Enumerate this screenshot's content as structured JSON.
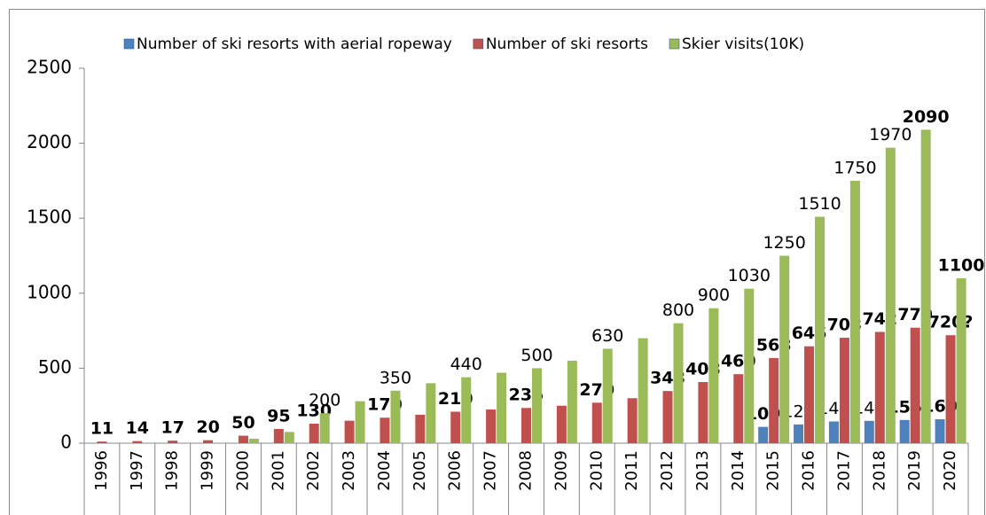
{
  "chart_data": {
    "type": "bar",
    "categories": [
      "1996",
      "1997",
      "1998",
      "1999",
      "2000",
      "2001",
      "2002",
      "2003",
      "2004",
      "2005",
      "2006",
      "2007",
      "2008",
      "2009",
      "2010",
      "2011",
      "2012",
      "2013",
      "2014",
      "2015",
      "2016",
      "2017",
      "2018",
      "2019",
      "2020"
    ],
    "ylim": [
      0,
      2500
    ],
    "yticks": [
      0,
      500,
      1000,
      1500,
      2000,
      2500
    ],
    "grid": false,
    "legend": "top",
    "series": [
      {
        "name": "Number of ski resorts with aerial ropeway",
        "color": "#4f81bd",
        "values": [
          null,
          null,
          null,
          null,
          null,
          null,
          null,
          null,
          null,
          null,
          null,
          null,
          null,
          null,
          null,
          null,
          null,
          null,
          null,
          109,
          125,
          145,
          149,
          155,
          160
        ],
        "value_labels": [
          null,
          null,
          null,
          null,
          null,
          null,
          null,
          null,
          null,
          null,
          null,
          null,
          null,
          null,
          null,
          null,
          null,
          null,
          null,
          "109",
          "125",
          "145",
          "149",
          "155",
          "160"
        ],
        "label_colors": [
          null,
          null,
          null,
          null,
          null,
          null,
          null,
          null,
          null,
          null,
          null,
          null,
          null,
          null,
          null,
          null,
          null,
          null,
          null,
          "#000",
          "#000",
          "#000",
          "#000",
          "#000",
          "#ff0000"
        ],
        "label_bold": [
          null,
          null,
          null,
          null,
          null,
          null,
          null,
          null,
          null,
          null,
          null,
          null,
          null,
          null,
          null,
          null,
          null,
          null,
          null,
          true,
          false,
          false,
          false,
          true,
          true
        ]
      },
      {
        "name": "Number of ski resorts",
        "color": "#c0504d",
        "values": [
          11,
          14,
          17,
          20,
          50,
          95,
          130,
          150,
          170,
          190,
          210,
          225,
          235,
          250,
          270,
          300,
          348,
          408,
          460,
          568,
          646,
          703,
          742,
          770,
          720
        ],
        "value_labels": [
          "11",
          "14",
          "17",
          "20",
          "50",
          "95",
          "130",
          null,
          "170",
          null,
          "210",
          null,
          "235",
          null,
          "270",
          null,
          "348",
          "408",
          "460",
          "568",
          "646",
          "703",
          "742",
          "770",
          "720?"
        ],
        "label_colors": [
          "#000",
          "#000",
          "#000",
          "#000",
          "#000",
          "#000",
          "#000",
          null,
          "#000",
          null,
          "#000",
          null,
          "#000",
          null,
          "#000",
          null,
          "#000",
          "#000",
          "#000",
          "#000",
          "#000",
          "#000",
          "#000",
          "#1fb0e6",
          "#ff0000"
        ],
        "label_bold": [
          true,
          true,
          true,
          true,
          true,
          true,
          true,
          null,
          true,
          null,
          true,
          null,
          true,
          null,
          true,
          null,
          true,
          true,
          true,
          true,
          true,
          true,
          true,
          true,
          true
        ]
      },
      {
        "name": "Skier visits(10K)",
        "color": "#9bbb59",
        "values": [
          null,
          null,
          null,
          null,
          30,
          75,
          200,
          280,
          350,
          400,
          440,
          470,
          500,
          550,
          630,
          700,
          800,
          900,
          1030,
          1250,
          1510,
          1750,
          1970,
          2090,
          1100
        ],
        "value_labels": [
          null,
          null,
          null,
          null,
          null,
          null,
          "200",
          null,
          "350",
          null,
          "440",
          null,
          "500",
          null,
          "630",
          null,
          "800",
          "900",
          "1030",
          "1250",
          "1510",
          "1750",
          "1970",
          "2090",
          "1100"
        ],
        "label_colors": [
          null,
          null,
          null,
          null,
          null,
          null,
          "#000",
          null,
          "#000",
          null,
          "#000",
          null,
          "#000",
          null,
          "#000",
          null,
          "#000",
          "#000",
          "#000",
          "#000",
          "#000",
          "#000",
          "#000",
          "#1fb0e6",
          "#ff0000"
        ],
        "label_bold": [
          null,
          null,
          null,
          null,
          null,
          null,
          false,
          null,
          false,
          null,
          false,
          null,
          false,
          null,
          false,
          null,
          false,
          false,
          false,
          false,
          false,
          false,
          false,
          true,
          true
        ]
      }
    ]
  }
}
